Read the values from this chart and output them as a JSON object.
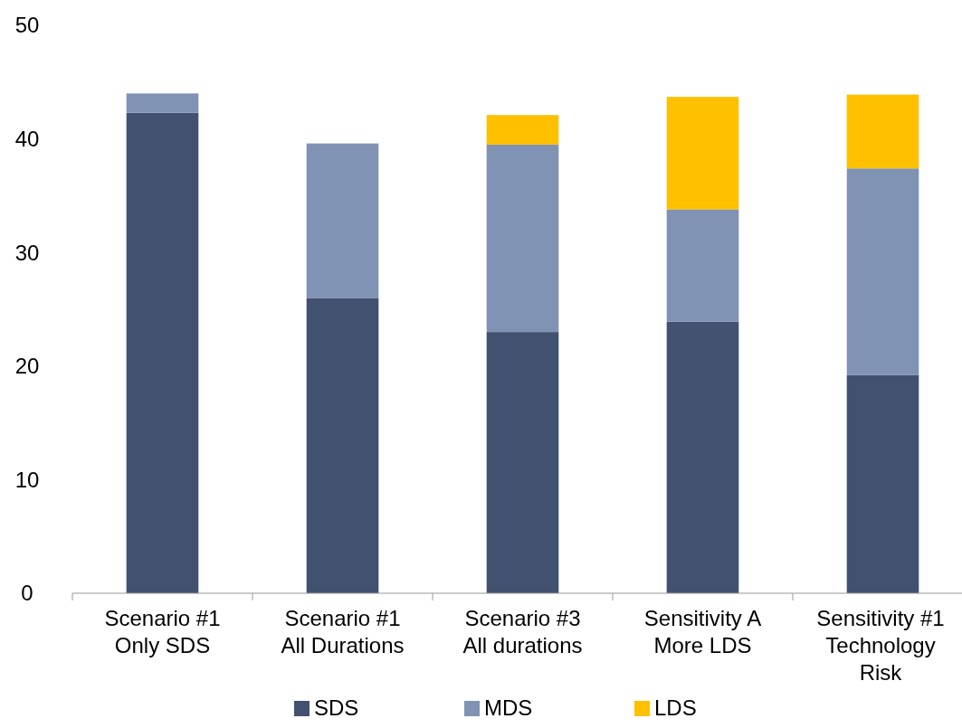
{
  "chart_data": {
    "type": "bar",
    "stacked": true,
    "categories": [
      "Scenario #1 Only SDS",
      "Scenario #1 All Durations",
      "Scenario #3 All durations",
      "Sensitivity A More LDS",
      "Sensitivity #1 Technology Risk"
    ],
    "series": [
      {
        "name": "SDS",
        "color": "#41516f",
        "values": [
          42.3,
          26.0,
          23.0,
          23.9,
          19.2
        ]
      },
      {
        "name": "MDS",
        "color": "#8093b5",
        "values": [
          1.7,
          13.6,
          16.5,
          9.9,
          18.2
        ]
      },
      {
        "name": "LDS",
        "color": "#ffc000",
        "values": [
          null,
          null,
          2.6,
          9.9,
          6.5
        ]
      }
    ],
    "ylim": [
      0,
      50
    ],
    "yticks": [
      0,
      10,
      20,
      30,
      40,
      50
    ],
    "legend": "bottom"
  }
}
